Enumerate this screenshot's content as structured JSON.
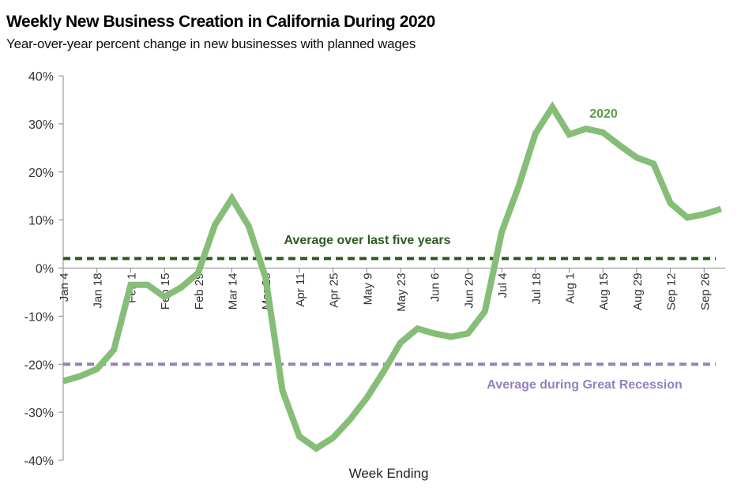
{
  "chart_data": {
    "type": "line",
    "title": "Weekly New Business Creation in California During 2020",
    "subtitle": "Year-over-year percent change in new businesses with planned wages",
    "xlabel": "Week Ending",
    "ylabel": "",
    "ylim": [
      -40,
      40
    ],
    "yticks": [
      40,
      30,
      20,
      10,
      0,
      -10,
      -20,
      -30,
      -40
    ],
    "ytick_labels": [
      "40%",
      "30%",
      "20%",
      "10%",
      "0%",
      "-10%",
      "-20%",
      "-30%",
      "-40%"
    ],
    "xtick_labels": [
      "Jan 4",
      "Jan 18",
      "Feb 1",
      "Feb 15",
      "Feb 29",
      "Mar 14",
      "Mar 28",
      "Apr 11",
      "Apr 25",
      "May 9",
      "May 23",
      "Jun 6",
      "Jun 20",
      "Jul 4",
      "Jul 18",
      "Aug 1",
      "Aug 15",
      "Aug 29",
      "Sep 12",
      "Sep 26"
    ],
    "grid": false,
    "series": [
      {
        "name": "2020",
        "color": "#86bd77",
        "label_color": "#5b9a4c",
        "values": [
          -23.5,
          -22.5,
          -21,
          -17,
          -3.5,
          -3.5,
          -6,
          -4,
          -1,
          9,
          14.5,
          8.7,
          -2,
          -25.5,
          -35,
          -37.5,
          -35.3,
          -31.5,
          -27,
          -21.5,
          -15.5,
          -12.6,
          -13.6,
          -14.3,
          -13.6,
          -9,
          7.5,
          17,
          28,
          33.5,
          27.8,
          29,
          28.2,
          25.5,
          23,
          21.7,
          13.5,
          10.5,
          11.2,
          12.3
        ]
      }
    ],
    "reference_lines": [
      {
        "name": "Average over last five years",
        "value": 2,
        "color": "#2d5a1f"
      },
      {
        "name": "Average during Great Recession",
        "value": -20,
        "color": "#9580c0"
      }
    ],
    "axis_color": "#888888"
  }
}
